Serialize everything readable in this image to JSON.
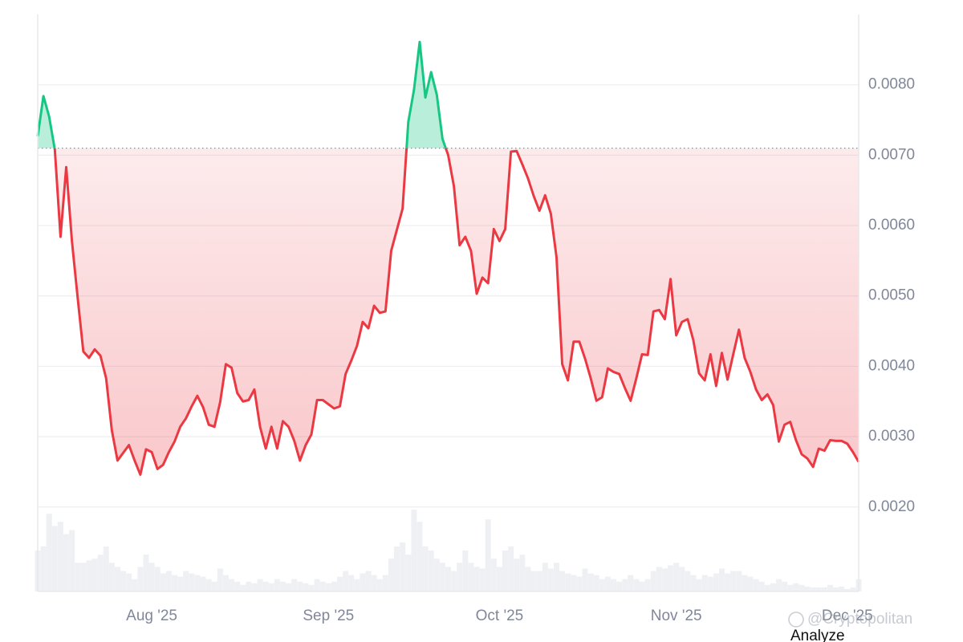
{
  "chart_data": {
    "type": "baseline",
    "categories": [
      null,
      null,
      null,
      null,
      null,
      null,
      null,
      null,
      null,
      null,
      null,
      null,
      null,
      null,
      null,
      null,
      null,
      null,
      null,
      null,
      "Aug '25",
      null,
      null,
      null,
      null,
      null,
      null,
      null,
      null,
      null,
      null,
      null,
      null,
      null,
      null,
      null,
      null,
      null,
      null,
      null,
      null,
      null,
      null,
      null,
      null,
      null,
      null,
      null,
      null,
      null,
      null,
      "Sep '25",
      null,
      null,
      null,
      null,
      null,
      null,
      null,
      null,
      null,
      null,
      null,
      null,
      null,
      null,
      null,
      null,
      null,
      null,
      null,
      null,
      null,
      null,
      null,
      null,
      null,
      null,
      null,
      null,
      null,
      "Oct '25",
      null,
      null,
      null,
      null,
      null,
      null,
      null,
      null,
      null,
      null,
      null,
      null,
      null,
      null,
      null,
      null,
      null,
      null,
      null,
      null,
      null,
      null,
      null,
      null,
      null,
      null,
      null,
      null,
      null,
      null,
      "Nov '25",
      null,
      null,
      null,
      null,
      null,
      null,
      null,
      null,
      null,
      null,
      null,
      null,
      null,
      null,
      null,
      null,
      null,
      null,
      null,
      null,
      null,
      null,
      null,
      null,
      null,
      null,
      null,
      null,
      null,
      "Dec '25",
      null,
      null
    ],
    "values": [
      0.00727,
      0.00784,
      0.00755,
      0.00708,
      0.00584,
      0.00683,
      0.00578,
      0.00498,
      0.00421,
      0.00412,
      0.00424,
      0.00415,
      0.00383,
      0.00309,
      0.00266,
      0.00277,
      0.00288,
      0.00266,
      0.00246,
      0.00282,
      0.00278,
      0.00254,
      0.0026,
      0.00278,
      0.00293,
      0.00314,
      0.00326,
      0.00343,
      0.00358,
      0.00342,
      0.00317,
      0.00314,
      0.00349,
      0.00403,
      0.00398,
      0.00362,
      0.0035,
      0.00352,
      0.00367,
      0.00314,
      0.00283,
      0.00314,
      0.00283,
      0.00322,
      0.00314,
      0.00294,
      0.00266,
      0.00288,
      0.00303,
      0.00352,
      0.00352,
      0.00346,
      0.0034,
      0.00343,
      0.00389,
      0.00408,
      0.00429,
      0.00463,
      0.00454,
      0.00486,
      0.00476,
      0.00478,
      0.00564,
      0.00594,
      0.00624,
      0.00747,
      0.00793,
      0.00861,
      0.00782,
      0.00818,
      0.00786,
      0.00723,
      0.007,
      0.00656,
      0.00572,
      0.00584,
      0.00564,
      0.00503,
      0.00526,
      0.00518,
      0.00595,
      0.00578,
      0.00595,
      0.00705,
      0.00706,
      0.00687,
      0.00667,
      0.00642,
      0.00621,
      0.00643,
      0.00617,
      0.00555,
      0.00403,
      0.0038,
      0.00435,
      0.00435,
      0.00411,
      0.00383,
      0.00351,
      0.00356,
      0.00397,
      0.00392,
      0.00389,
      0.00369,
      0.00351,
      0.00383,
      0.00417,
      0.00416,
      0.00478,
      0.0048,
      0.00467,
      0.00524,
      0.00444,
      0.00463,
      0.00467,
      0.00437,
      0.0039,
      0.0038,
      0.00417,
      0.00372,
      0.00419,
      0.00381,
      0.00417,
      0.00452,
      0.00412,
      0.00392,
      0.00367,
      0.00352,
      0.0036,
      0.00345,
      0.00293,
      0.00317,
      0.00321,
      0.00295,
      0.00275,
      0.00269,
      0.00257,
      0.00283,
      0.0028,
      0.00295,
      0.00294,
      0.00294,
      0.0029,
      0.00278,
      0.00264
    ],
    "volume": [
      50,
      55,
      95,
      80,
      85,
      70,
      75,
      35,
      35,
      38,
      40,
      45,
      55,
      35,
      30,
      25,
      22,
      15,
      30,
      45,
      35,
      30,
      22,
      25,
      20,
      18,
      25,
      22,
      20,
      18,
      15,
      12,
      28,
      20,
      15,
      12,
      8,
      12,
      10,
      15,
      12,
      10,
      15,
      12,
      10,
      15,
      12,
      10,
      8,
      15,
      12,
      10,
      12,
      18,
      25,
      20,
      15,
      22,
      25,
      20,
      15,
      20,
      40,
      55,
      60,
      45,
      100,
      85,
      55,
      50,
      40,
      35,
      30,
      25,
      35,
      50,
      35,
      30,
      28,
      88,
      40,
      30,
      50,
      55,
      40,
      45,
      30,
      25,
      25,
      35,
      28,
      35,
      25,
      22,
      20,
      18,
      28,
      22,
      20,
      15,
      18,
      15,
      12,
      15,
      20,
      15,
      12,
      15,
      25,
      30,
      28,
      32,
      35,
      30,
      25,
      20,
      15,
      20,
      18,
      22,
      28,
      22,
      25,
      25,
      20,
      18,
      15,
      12,
      8,
      10,
      15,
      12,
      8,
      10,
      8,
      6,
      5,
      5,
      5,
      8,
      5,
      6,
      3,
      5,
      15
    ],
    "baseline": 0.0071,
    "color_above": "#16c784",
    "color_below": "#ea3943",
    "volume_color": "#eef0f3",
    "ylim": [
      0.0008,
      0.009
    ],
    "yticks": [
      {
        "value": 0.002,
        "label": "0.0020"
      },
      {
        "value": 0.003,
        "label": "0.0030"
      },
      {
        "value": 0.004,
        "label": "0.0040"
      },
      {
        "value": 0.005,
        "label": "0.0050"
      },
      {
        "value": 0.006,
        "label": "0.0060"
      },
      {
        "value": 0.007,
        "label": "0.0070"
      },
      {
        "value": 0.008,
        "label": "0.0080"
      }
    ],
    "grid": true,
    "watermark": "@Cryptopolitan",
    "button": "Analyze"
  }
}
